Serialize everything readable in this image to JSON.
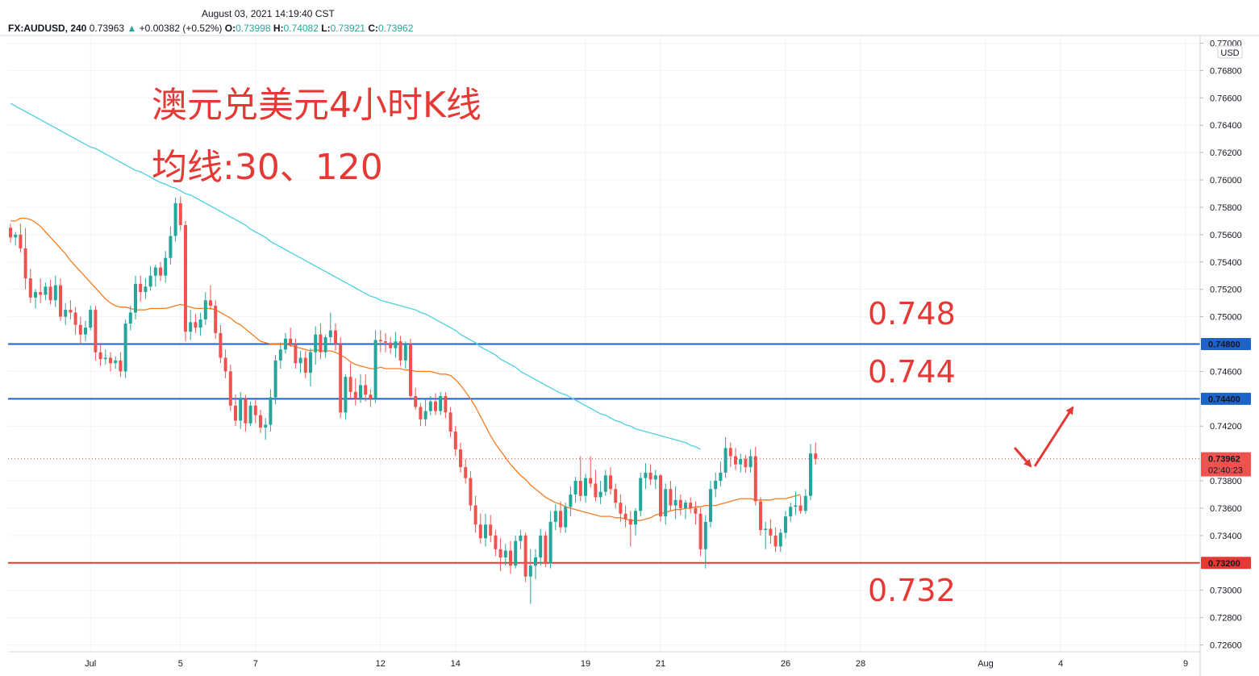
{
  "header": {
    "datetime": "August 03, 2021 14:19:40 CST",
    "symbol": "FX:AUDUSD, 240",
    "last": "0.73963",
    "change": "+0.00382 (+0.52%)",
    "o_label": "O:",
    "o": "0.73998",
    "h_label": "H:",
    "h": "0.74082",
    "l_label": "L:",
    "l": "0.73921",
    "c_label": "C:",
    "c": "0.73962"
  },
  "currency_label": "USD",
  "annotations": {
    "title_line1": "澳元兑美元4小时K线",
    "title_line2": "均线:30、120",
    "level_748": "0.748",
    "level_744": "0.744",
    "level_732": "0.732"
  },
  "price_tags": {
    "line_748": "0.74800",
    "line_744": "0.74400",
    "line_732": "0.73200",
    "current": "0.73962",
    "countdown": "02:40:23"
  },
  "colors": {
    "up": "#26a69a",
    "down": "#ef5350",
    "ma30": "#f57c20",
    "ma120": "#4dd0e1",
    "resistance": "#1e63c8",
    "support": "#e53935",
    "annotation": "#e53935"
  },
  "chart_data": {
    "type": "candlestick",
    "symbol": "FX:AUDUSD",
    "timeframe": "240",
    "ylim": [
      0.7255,
      0.7705
    ],
    "y_ticks": [
      "0.77000",
      "0.76800",
      "0.76600",
      "0.76400",
      "0.76200",
      "0.76000",
      "0.75800",
      "0.75600",
      "0.75400",
      "0.75200",
      "0.75000",
      "0.74600",
      "0.74200",
      "0.73800",
      "0.73600",
      "0.73400",
      "0.73000",
      "0.72800",
      "0.72600"
    ],
    "x_ticks": [
      {
        "label": "Jul",
        "i": 16
      },
      {
        "label": "5",
        "i": 34
      },
      {
        "label": "7",
        "i": 49
      },
      {
        "label": "12",
        "i": 74
      },
      {
        "label": "14",
        "i": 89
      },
      {
        "label": "19",
        "i": 115
      },
      {
        "label": "21",
        "i": 130
      },
      {
        "label": "26",
        "i": 155
      },
      {
        "label": "28",
        "i": 170
      },
      {
        "label": "Aug",
        "i": 195
      },
      {
        "label": "4",
        "i": 210
      },
      {
        "label": "9",
        "i": 235
      }
    ],
    "candles_ohlc": [
      [
        0.7565,
        0.7568,
        0.7554,
        0.7558
      ],
      [
        0.7558,
        0.7562,
        0.7552,
        0.756
      ],
      [
        0.756,
        0.7568,
        0.7547,
        0.755
      ],
      [
        0.755,
        0.7565,
        0.752,
        0.7528
      ],
      [
        0.7528,
        0.7535,
        0.751,
        0.7514
      ],
      [
        0.7514,
        0.752,
        0.7506,
        0.7518
      ],
      [
        0.7518,
        0.7528,
        0.751,
        0.7516
      ],
      [
        0.7516,
        0.7525,
        0.7512,
        0.7522
      ],
      [
        0.7522,
        0.7527,
        0.7509,
        0.7512
      ],
      [
        0.7512,
        0.753,
        0.7507,
        0.7523
      ],
      [
        0.7523,
        0.7528,
        0.7497,
        0.75
      ],
      [
        0.75,
        0.751,
        0.7494,
        0.7505
      ],
      [
        0.7505,
        0.7512,
        0.7498,
        0.7503
      ],
      [
        0.7503,
        0.7507,
        0.7487,
        0.7494
      ],
      [
        0.7494,
        0.75,
        0.748,
        0.7487
      ],
      [
        0.7487,
        0.7497,
        0.7482,
        0.7492
      ],
      [
        0.7492,
        0.7508,
        0.749,
        0.7505
      ],
      [
        0.7505,
        0.7508,
        0.7468,
        0.7474
      ],
      [
        0.7474,
        0.748,
        0.7464,
        0.7469
      ],
      [
        0.7469,
        0.7476,
        0.7465,
        0.747
      ],
      [
        0.747,
        0.7474,
        0.746,
        0.7466
      ],
      [
        0.7466,
        0.7471,
        0.7462,
        0.7468
      ],
      [
        0.7468,
        0.7474,
        0.7456,
        0.746
      ],
      [
        0.746,
        0.7498,
        0.7455,
        0.7495
      ],
      [
        0.7495,
        0.7508,
        0.749,
        0.7503
      ],
      [
        0.7503,
        0.753,
        0.7498,
        0.7524
      ],
      [
        0.7524,
        0.753,
        0.7511,
        0.7518
      ],
      [
        0.7518,
        0.7528,
        0.7513,
        0.7522
      ],
      [
        0.7522,
        0.7537,
        0.7519,
        0.753
      ],
      [
        0.753,
        0.7538,
        0.7522,
        0.7536
      ],
      [
        0.7536,
        0.754,
        0.7526,
        0.753
      ],
      [
        0.753,
        0.7548,
        0.7525,
        0.7543
      ],
      [
        0.7543,
        0.7566,
        0.7538,
        0.7559
      ],
      [
        0.7559,
        0.7587,
        0.7555,
        0.7583
      ],
      [
        0.7583,
        0.7588,
        0.7563,
        0.7567
      ],
      [
        0.7567,
        0.757,
        0.7482,
        0.7489
      ],
      [
        0.7489,
        0.7505,
        0.7483,
        0.7496
      ],
      [
        0.7496,
        0.7502,
        0.7488,
        0.7492
      ],
      [
        0.7492,
        0.7503,
        0.7486,
        0.7498
      ],
      [
        0.7498,
        0.7518,
        0.7494,
        0.7512
      ],
      [
        0.7512,
        0.7523,
        0.7505,
        0.7508
      ],
      [
        0.7508,
        0.7512,
        0.7484,
        0.7488
      ],
      [
        0.7488,
        0.7494,
        0.7466,
        0.747
      ],
      [
        0.747,
        0.7476,
        0.7455,
        0.746
      ],
      [
        0.746,
        0.7465,
        0.7431,
        0.7435
      ],
      [
        0.7435,
        0.7443,
        0.742,
        0.7424
      ],
      [
        0.7424,
        0.7445,
        0.7418,
        0.744
      ],
      [
        0.744,
        0.7443,
        0.7416,
        0.7422
      ],
      [
        0.7422,
        0.7438,
        0.742,
        0.7435
      ],
      [
        0.7435,
        0.744,
        0.7422,
        0.7428
      ],
      [
        0.7428,
        0.7432,
        0.7415,
        0.7419
      ],
      [
        0.7419,
        0.7426,
        0.741,
        0.7421
      ],
      [
        0.7421,
        0.7447,
        0.7416,
        0.7441
      ],
      [
        0.7441,
        0.7472,
        0.7436,
        0.7468
      ],
      [
        0.7468,
        0.7481,
        0.7462,
        0.7476
      ],
      [
        0.7476,
        0.7488,
        0.7473,
        0.7484
      ],
      [
        0.7484,
        0.7492,
        0.7478,
        0.748
      ],
      [
        0.748,
        0.7484,
        0.7462,
        0.7466
      ],
      [
        0.7466,
        0.7475,
        0.7459,
        0.747
      ],
      [
        0.747,
        0.7475,
        0.7455,
        0.7459
      ],
      [
        0.7459,
        0.7477,
        0.7449,
        0.7474
      ],
      [
        0.7474,
        0.7493,
        0.7465,
        0.7487
      ],
      [
        0.7487,
        0.7495,
        0.7469,
        0.7474
      ],
      [
        0.7474,
        0.7487,
        0.747,
        0.7485
      ],
      [
        0.7485,
        0.7503,
        0.7481,
        0.749
      ],
      [
        0.749,
        0.7495,
        0.7475,
        0.748
      ],
      [
        0.748,
        0.7485,
        0.7426,
        0.743
      ],
      [
        0.743,
        0.7458,
        0.7425,
        0.7456
      ],
      [
        0.7456,
        0.7466,
        0.744,
        0.7445
      ],
      [
        0.7445,
        0.7455,
        0.7435,
        0.744
      ],
      [
        0.744,
        0.7458,
        0.7437,
        0.745
      ],
      [
        0.745,
        0.7458,
        0.7438,
        0.7443
      ],
      [
        0.7443,
        0.7447,
        0.7434,
        0.744
      ],
      [
        0.744,
        0.749,
        0.7437,
        0.7483
      ],
      [
        0.7483,
        0.749,
        0.7474,
        0.7482
      ],
      [
        0.7482,
        0.7488,
        0.7474,
        0.7481
      ],
      [
        0.7481,
        0.7485,
        0.7473,
        0.7477
      ],
      [
        0.7477,
        0.7489,
        0.747,
        0.7482
      ],
      [
        0.7482,
        0.7486,
        0.7464,
        0.7468
      ],
      [
        0.7468,
        0.7482,
        0.7462,
        0.748
      ],
      [
        0.748,
        0.7484,
        0.7439,
        0.7442
      ],
      [
        0.7442,
        0.7448,
        0.7432,
        0.7434
      ],
      [
        0.7434,
        0.7437,
        0.742,
        0.7425
      ],
      [
        0.7425,
        0.744,
        0.742,
        0.7431
      ],
      [
        0.7431,
        0.7442,
        0.7428,
        0.7438
      ],
      [
        0.7438,
        0.7444,
        0.7428,
        0.7431
      ],
      [
        0.7431,
        0.7445,
        0.7428,
        0.7442
      ],
      [
        0.7442,
        0.7445,
        0.7426,
        0.743
      ],
      [
        0.743,
        0.7434,
        0.7412,
        0.7416
      ],
      [
        0.7416,
        0.742,
        0.7398,
        0.7403
      ],
      [
        0.7403,
        0.7408,
        0.7386,
        0.739
      ],
      [
        0.739,
        0.7396,
        0.7378,
        0.7382
      ],
      [
        0.7382,
        0.7387,
        0.7358,
        0.7362
      ],
      [
        0.7362,
        0.7369,
        0.7342,
        0.7348
      ],
      [
        0.7348,
        0.7356,
        0.7334,
        0.7338
      ],
      [
        0.7338,
        0.7356,
        0.7332,
        0.7348
      ],
      [
        0.7348,
        0.7355,
        0.7335,
        0.734
      ],
      [
        0.734,
        0.7344,
        0.7325,
        0.733
      ],
      [
        0.733,
        0.7338,
        0.7314,
        0.7324
      ],
      [
        0.7324,
        0.7334,
        0.7318,
        0.7329
      ],
      [
        0.7329,
        0.7336,
        0.7312,
        0.7318
      ],
      [
        0.7318,
        0.734,
        0.7316,
        0.7336
      ],
      [
        0.7336,
        0.7344,
        0.733,
        0.734
      ],
      [
        0.734,
        0.7342,
        0.7306,
        0.731
      ],
      [
        0.731,
        0.733,
        0.729,
        0.7318
      ],
      [
        0.7318,
        0.733,
        0.7308,
        0.7324
      ],
      [
        0.7324,
        0.7345,
        0.7318,
        0.734
      ],
      [
        0.734,
        0.7343,
        0.7317,
        0.732
      ],
      [
        0.732,
        0.7358,
        0.7316,
        0.735
      ],
      [
        0.735,
        0.7363,
        0.7344,
        0.7358
      ],
      [
        0.7358,
        0.7365,
        0.7342,
        0.7346
      ],
      [
        0.7346,
        0.7364,
        0.7342,
        0.7361
      ],
      [
        0.7361,
        0.7376,
        0.7354,
        0.737
      ],
      [
        0.737,
        0.7383,
        0.7364,
        0.738
      ],
      [
        0.738,
        0.7398,
        0.7365,
        0.7369
      ],
      [
        0.7369,
        0.7385,
        0.7364,
        0.7382
      ],
      [
        0.7382,
        0.7398,
        0.7375,
        0.7378
      ],
      [
        0.7378,
        0.7388,
        0.7365,
        0.7368
      ],
      [
        0.7368,
        0.738,
        0.7363,
        0.7372
      ],
      [
        0.7372,
        0.7388,
        0.7369,
        0.7384
      ],
      [
        0.7384,
        0.739,
        0.737,
        0.7374
      ],
      [
        0.7374,
        0.7378,
        0.736,
        0.7364
      ],
      [
        0.7364,
        0.737,
        0.735,
        0.7356
      ],
      [
        0.7356,
        0.7362,
        0.7346,
        0.7352
      ],
      [
        0.7352,
        0.7358,
        0.7332,
        0.7348
      ],
      [
        0.7348,
        0.736,
        0.734,
        0.7358
      ],
      [
        0.7358,
        0.7386,
        0.7354,
        0.7382
      ],
      [
        0.7382,
        0.7393,
        0.7374,
        0.7386
      ],
      [
        0.7386,
        0.7392,
        0.7377,
        0.7381
      ],
      [
        0.7381,
        0.7388,
        0.7374,
        0.7384
      ],
      [
        0.7384,
        0.7385,
        0.735,
        0.7354
      ],
      [
        0.7354,
        0.7378,
        0.7348,
        0.7374
      ],
      [
        0.7374,
        0.738,
        0.7358,
        0.7362
      ],
      [
        0.7362,
        0.7376,
        0.7352,
        0.7366
      ],
      [
        0.7366,
        0.737,
        0.7355,
        0.736
      ],
      [
        0.736,
        0.7366,
        0.7352,
        0.7364
      ],
      [
        0.7364,
        0.7368,
        0.7356,
        0.736
      ],
      [
        0.736,
        0.7365,
        0.7348,
        0.7356
      ],
      [
        0.7356,
        0.736,
        0.7325,
        0.733
      ],
      [
        0.733,
        0.7355,
        0.7316,
        0.735
      ],
      [
        0.735,
        0.738,
        0.7346,
        0.7374
      ],
      [
        0.7374,
        0.7386,
        0.7368,
        0.738
      ],
      [
        0.738,
        0.7394,
        0.7376,
        0.7386
      ],
      [
        0.7386,
        0.7412,
        0.7382,
        0.7404
      ],
      [
        0.7404,
        0.7408,
        0.739,
        0.7398
      ],
      [
        0.7398,
        0.7404,
        0.7388,
        0.7392
      ],
      [
        0.7392,
        0.74,
        0.7386,
        0.7396
      ],
      [
        0.7396,
        0.7399,
        0.7386,
        0.739
      ],
      [
        0.739,
        0.7403,
        0.7386,
        0.7398
      ],
      [
        0.7398,
        0.7405,
        0.7362,
        0.7365
      ],
      [
        0.7365,
        0.7368,
        0.734,
        0.7344
      ],
      [
        0.7344,
        0.735,
        0.733,
        0.7345
      ],
      [
        0.7345,
        0.7352,
        0.7334,
        0.734
      ],
      [
        0.734,
        0.7346,
        0.7328,
        0.7332
      ],
      [
        0.7332,
        0.7345,
        0.7328,
        0.7342
      ],
      [
        0.7342,
        0.7358,
        0.7338,
        0.7354
      ],
      [
        0.7354,
        0.7364,
        0.735,
        0.7361
      ],
      [
        0.7361,
        0.7372,
        0.7355,
        0.7362
      ],
      [
        0.7362,
        0.7369,
        0.7356,
        0.7358
      ],
      [
        0.7358,
        0.7374,
        0.7356,
        0.7369
      ],
      [
        0.7369,
        0.7407,
        0.7366,
        0.74
      ],
      [
        0.74,
        0.7408,
        0.7392,
        0.7396
      ]
    ],
    "ma30": [
      0.757,
      0.757,
      0.7572,
      0.7572,
      0.7571,
      0.7569,
      0.7566,
      0.7562,
      0.7558,
      0.7554,
      0.755,
      0.7546,
      0.7541,
      0.7537,
      0.7533,
      0.7529,
      0.7525,
      0.7521,
      0.7517,
      0.7513,
      0.751,
      0.7508,
      0.7507,
      0.7507,
      0.7506,
      0.7505,
      0.7505,
      0.7505,
      0.7506,
      0.7506,
      0.7506,
      0.7506,
      0.7507,
      0.7508,
      0.7509,
      0.7508,
      0.7507,
      0.7506,
      0.7506,
      0.7506,
      0.7506,
      0.7505,
      0.7503,
      0.7501,
      0.7499,
      0.7496,
      0.7494,
      0.7491,
      0.7488,
      0.7485,
      0.7482,
      0.7481,
      0.748,
      0.748,
      0.748,
      0.748,
      0.7479,
      0.7478,
      0.7477,
      0.7476,
      0.7475,
      0.7476,
      0.7475,
      0.7475,
      0.7475,
      0.7474,
      0.7472,
      0.747,
      0.7467,
      0.7465,
      0.7464,
      0.7463,
      0.7462,
      0.7462,
      0.7463,
      0.7462,
      0.7462,
      0.7462,
      0.7462,
      0.7461,
      0.7461,
      0.746,
      0.746,
      0.746,
      0.746,
      0.7459,
      0.7458,
      0.7458,
      0.7457,
      0.7454,
      0.745,
      0.7445,
      0.744,
      0.7434,
      0.7427,
      0.742,
      0.7413,
      0.7407,
      0.7402,
      0.7397,
      0.7392,
      0.7388,
      0.7384,
      0.7381,
      0.7377,
      0.7374,
      0.7371,
      0.7368,
      0.7366,
      0.7364,
      0.7363,
      0.7361,
      0.736,
      0.7359,
      0.7358,
      0.7357,
      0.7356,
      0.7355,
      0.7354,
      0.7354,
      0.7354,
      0.7353,
      0.7353,
      0.7352,
      0.7351,
      0.7351,
      0.7351,
      0.7352,
      0.7353,
      0.7355,
      0.7356,
      0.7357,
      0.7358,
      0.7359,
      0.7359,
      0.736,
      0.736,
      0.7361,
      0.7361,
      0.7362,
      0.7362,
      0.7362,
      0.7363,
      0.7364,
      0.7365,
      0.7366,
      0.7367,
      0.7367,
      0.7367,
      0.7366,
      0.7366,
      0.7366,
      0.7366,
      0.7367,
      0.7367,
      0.7367,
      0.7368,
      0.7369,
      0.737
    ],
    "ma120": [
      0.7656,
      0.7654,
      0.7652,
      0.765,
      0.7648,
      0.7646,
      0.7644,
      0.7642,
      0.764,
      0.7638,
      0.7636,
      0.7634,
      0.7632,
      0.763,
      0.7628,
      0.7626,
      0.7624,
      0.7623,
      0.7621,
      0.7619,
      0.7617,
      0.7615,
      0.7613,
      0.7611,
      0.7609,
      0.7607,
      0.7606,
      0.7604,
      0.7602,
      0.76,
      0.7598,
      0.7597,
      0.7595,
      0.7594,
      0.7592,
      0.759,
      0.7589,
      0.7587,
      0.7585,
      0.7583,
      0.7581,
      0.7579,
      0.7577,
      0.7575,
      0.7573,
      0.7571,
      0.7569,
      0.7567,
      0.7564,
      0.7562,
      0.756,
      0.7558,
      0.7555,
      0.7553,
      0.7551,
      0.7549,
      0.7547,
      0.7545,
      0.7543,
      0.7541,
      0.7539,
      0.7537,
      0.7535,
      0.7533,
      0.7531,
      0.7529,
      0.7527,
      0.7525,
      0.7523,
      0.7521,
      0.7519,
      0.7517,
      0.7515,
      0.7514,
      0.7512,
      0.7511,
      0.751,
      0.7509,
      0.7508,
      0.7507,
      0.7506,
      0.7505,
      0.7503,
      0.7502,
      0.75,
      0.7498,
      0.7496,
      0.7494,
      0.7492,
      0.749,
      0.7487,
      0.7485,
      0.7483,
      0.7481,
      0.7478,
      0.7476,
      0.7474,
      0.7472,
      0.7469,
      0.7467,
      0.7465,
      0.7463,
      0.746,
      0.7458,
      0.7456,
      0.7454,
      0.7452,
      0.745,
      0.7448,
      0.7446,
      0.7444,
      0.7443,
      0.7441,
      0.7439,
      0.7437,
      0.7435,
      0.7433,
      0.7431,
      0.7429,
      0.7428,
      0.7426,
      0.7424,
      0.7423,
      0.7421,
      0.742,
      0.7418,
      0.7417,
      0.7416,
      0.7415,
      0.7414,
      0.7413,
      0.7412,
      0.7411,
      0.741,
      0.7409,
      0.7408,
      0.7406,
      0.7405,
      0.7403
    ],
    "horizontal_levels": [
      {
        "price": 0.748,
        "color": "#1e63c8",
        "label": "0.748"
      },
      {
        "price": 0.744,
        "color": "#1e63c8",
        "label": "0.744"
      },
      {
        "price": 0.732,
        "color": "#e53935",
        "label": "0.732"
      }
    ],
    "current_price": 0.73962,
    "grid": true
  }
}
